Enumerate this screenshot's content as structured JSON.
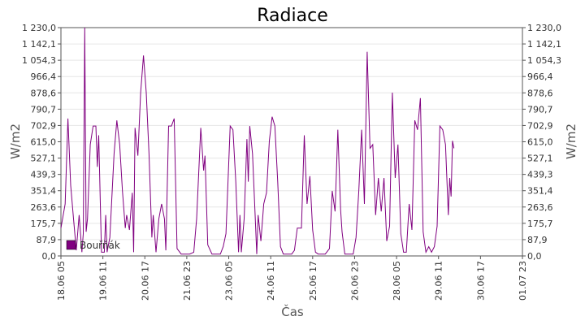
{
  "chart_data": {
    "type": "line",
    "title": "Radiace",
    "xlabel": "Čas",
    "ylabel": "W/m2",
    "ylabel_right": "W/m2",
    "ylim": [
      0,
      1230
    ],
    "yticks": [
      "0,0",
      "87,9",
      "175,7",
      "263,6",
      "351,4",
      "439,3",
      "527,1",
      "615,0",
      "702,9",
      "790,7",
      "878,6",
      "966,4",
      "1 054,3",
      "1 142,1",
      "1 230,0"
    ],
    "xlim": [
      "18.06 05:00",
      "01.07 23:00"
    ],
    "xticks": [
      "18.06 05",
      "19.06 11",
      "20.06 17",
      "21.06 23",
      "23.06 05",
      "24.06 11",
      "25.06 17",
      "26.06 23",
      "28.06 05",
      "29.06 11",
      "30.06 17",
      "01.07 23"
    ],
    "grid": true,
    "legend_position": "bottom-left",
    "color": "#800080",
    "series": [
      {
        "name": "Bouřňák",
        "values": [
          [
            "18.06 05:00",
            150
          ],
          [
            "18.06 08:00",
            280
          ],
          [
            "18.06 10:00",
            740
          ],
          [
            "18.06 12:00",
            380
          ],
          [
            "18.06 14:00",
            200
          ],
          [
            "18.06 16:00",
            30
          ],
          [
            "18.06 18:00",
            220
          ],
          [
            "18.06 20:00",
            20
          ],
          [
            "18.06 21:00",
            120
          ],
          [
            "18.06 22:00",
            1230
          ],
          [
            "18.06 23:00",
            130
          ],
          [
            "19.06 00:00",
            200
          ],
          [
            "19.06 02:00",
            600
          ],
          [
            "19.06 04:00",
            700
          ],
          [
            "19.06 06:00",
            700
          ],
          [
            "19.06 07:00",
            480
          ],
          [
            "19.06 08:00",
            650
          ],
          [
            "19.06 10:00",
            20
          ],
          [
            "19.06 12:00",
            20
          ],
          [
            "19.06 13:00",
            220
          ],
          [
            "19.06 14:00",
            20
          ],
          [
            "19.06 16:00",
            100
          ],
          [
            "19.06 19:00",
            550
          ],
          [
            "19.06 21:00",
            730
          ],
          [
            "19.06 23:00",
            600
          ],
          [
            "20.06 01:00",
            350
          ],
          [
            "20.06 03:00",
            150
          ],
          [
            "20.06 04:00",
            220
          ],
          [
            "20.06 06:00",
            140
          ],
          [
            "20.06 08:00",
            340
          ],
          [
            "20.06 09:00",
            20
          ],
          [
            "20.06 10:00",
            690
          ],
          [
            "20.06 12:00",
            540
          ],
          [
            "20.06 14:00",
            880
          ],
          [
            "20.06 16:00",
            1080
          ],
          [
            "20.06 18:00",
            880
          ],
          [
            "20.06 20:00",
            550
          ],
          [
            "20.06 22:00",
            100
          ],
          [
            "20.06 23:00",
            220
          ],
          [
            "21.06 01:00",
            20
          ],
          [
            "21.06 03:00",
            200
          ],
          [
            "21.06 05:00",
            280
          ],
          [
            "21.06 07:00",
            200
          ],
          [
            "21.06 08:00",
            30
          ],
          [
            "21.06 10:00",
            700
          ],
          [
            "21.06 12:00",
            700
          ],
          [
            "21.06 14:00",
            740
          ],
          [
            "21.06 16:00",
            40
          ],
          [
            "21.06 19:00",
            10
          ],
          [
            "22.06 01:00",
            10
          ],
          [
            "22.06 04:00",
            20
          ],
          [
            "22.06 06:00",
            200
          ],
          [
            "22.06 09:00",
            690
          ],
          [
            "22.06 11:00",
            460
          ],
          [
            "22.06 12:00",
            540
          ],
          [
            "22.06 14:00",
            60
          ],
          [
            "22.06 17:00",
            10
          ],
          [
            "22.06 23:00",
            10
          ],
          [
            "23.06 01:00",
            50
          ],
          [
            "23.06 03:00",
            120
          ],
          [
            "23.06 06:00",
            700
          ],
          [
            "23.06 08:00",
            680
          ],
          [
            "23.06 10:00",
            400
          ],
          [
            "23.06 12:00",
            20
          ],
          [
            "23.06 13:00",
            220
          ],
          [
            "23.06 14:00",
            20
          ],
          [
            "23.06 16:00",
            200
          ],
          [
            "23.06 18:00",
            630
          ],
          [
            "23.06 19:00",
            400
          ],
          [
            "23.06 20:00",
            700
          ],
          [
            "23.06 22:00",
            550
          ],
          [
            "24.06 00:00",
            200
          ],
          [
            "24.06 01:00",
            10
          ],
          [
            "24.06 02:00",
            220
          ],
          [
            "24.06 04:00",
            80
          ],
          [
            "24.06 06:00",
            280
          ],
          [
            "24.06 08:00",
            340
          ],
          [
            "24.06 10:00",
            620
          ],
          [
            "24.06 12:00",
            750
          ],
          [
            "24.06 14:00",
            700
          ],
          [
            "24.06 16:00",
            400
          ],
          [
            "24.06 18:00",
            50
          ],
          [
            "24.06 20:00",
            10
          ],
          [
            "25.06 02:00",
            10
          ],
          [
            "25.06 04:00",
            30
          ],
          [
            "25.06 06:00",
            150
          ],
          [
            "25.06 09:00",
            150
          ],
          [
            "25.06 11:00",
            650
          ],
          [
            "25.06 13:00",
            280
          ],
          [
            "25.06 15:00",
            430
          ],
          [
            "25.06 17:00",
            140
          ],
          [
            "25.06 19:00",
            20
          ],
          [
            "25.06 21:00",
            10
          ],
          [
            "26.06 02:00",
            10
          ],
          [
            "26.06 05:00",
            40
          ],
          [
            "26.06 07:00",
            350
          ],
          [
            "26.06 09:00",
            240
          ],
          [
            "26.06 11:00",
            680
          ],
          [
            "26.06 13:00",
            250
          ],
          [
            "26.06 14:00",
            130
          ],
          [
            "26.06 16:00",
            10
          ],
          [
            "26.06 22:00",
            10
          ],
          [
            "27.06 00:00",
            100
          ],
          [
            "27.06 02:00",
            350
          ],
          [
            "27.06 04:00",
            680
          ],
          [
            "27.06 06:00",
            280
          ],
          [
            "27.06 08:00",
            1100
          ],
          [
            "27.06 10:00",
            580
          ],
          [
            "27.06 12:00",
            600
          ],
          [
            "27.06 14:00",
            220
          ],
          [
            "27.06 16:00",
            420
          ],
          [
            "27.06 18:00",
            240
          ],
          [
            "27.06 20:00",
            420
          ],
          [
            "27.06 22:00",
            80
          ],
          [
            "28.06 00:00",
            160
          ],
          [
            "28.06 02:00",
            880
          ],
          [
            "28.06 04:00",
            420
          ],
          [
            "28.06 06:00",
            600
          ],
          [
            "28.06 08:00",
            120
          ],
          [
            "28.06 10:00",
            20
          ],
          [
            "28.06 12:00",
            20
          ],
          [
            "28.06 14:00",
            280
          ],
          [
            "28.06 16:00",
            140
          ],
          [
            "28.06 18:00",
            730
          ],
          [
            "28.06 20:00",
            680
          ],
          [
            "28.06 22:00",
            850
          ],
          [
            "29.06 00:00",
            130
          ],
          [
            "29.06 02:00",
            20
          ],
          [
            "29.06 04:00",
            50
          ],
          [
            "29.06 06:00",
            20
          ],
          [
            "29.06 08:00",
            50
          ],
          [
            "29.06 10:00",
            160
          ],
          [
            "29.06 12:00",
            700
          ],
          [
            "29.06 14:00",
            680
          ],
          [
            "29.06 16:00",
            600
          ],
          [
            "29.06 18:00",
            220
          ],
          [
            "29.06 19:00",
            420
          ],
          [
            "29.06 20:00",
            320
          ],
          [
            "29.06 21:00",
            620
          ],
          [
            "29.06 22:00",
            580
          ]
        ]
      }
    ]
  }
}
